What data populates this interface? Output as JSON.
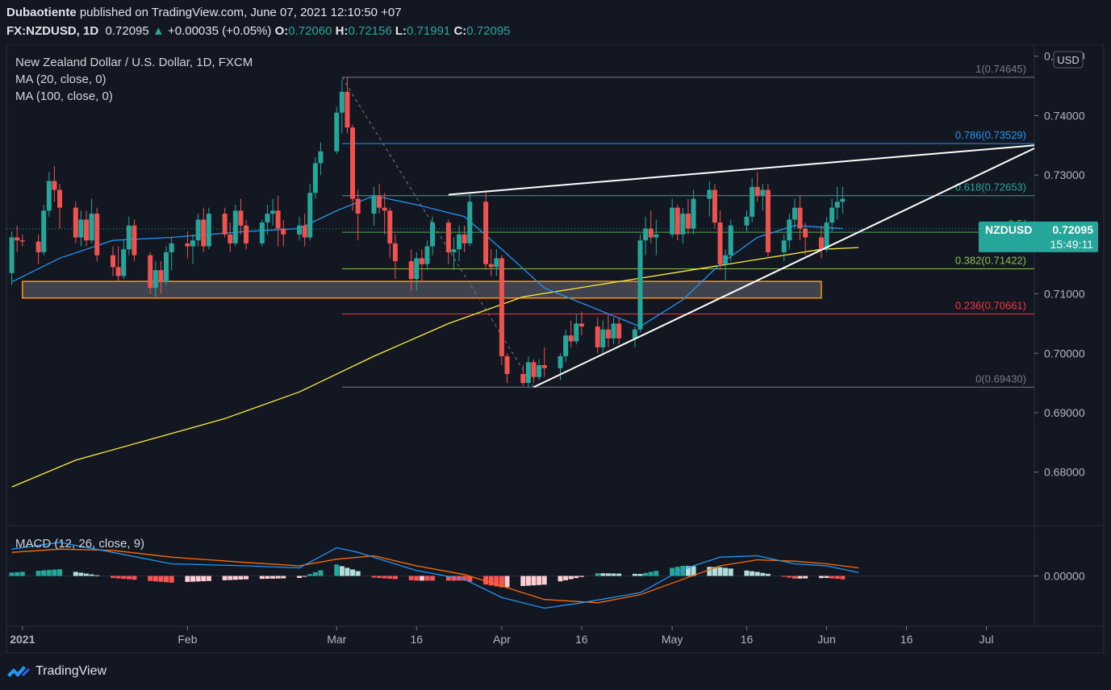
{
  "header": {
    "author": "Dubaotiente",
    "published": " published on TradingView.com, June 07, 2021 12:10:50 +07",
    "symbol": "FX:NZDUSD, 1D",
    "last": "0.72095",
    "change_arrow": "▲",
    "change": "+0.00035 (+0.05%)",
    "o_label": "O:",
    "o": "0.72060",
    "h_label": "H:",
    "h": "0.72156",
    "l_label": "L:",
    "l": "0.71991",
    "c_label": "C:",
    "c": "0.72095"
  },
  "legend": {
    "title": "New Zealand Dollar / U.S. Dollar, 1D, FXCM",
    "ma20": "MA (20, close, 0)",
    "ma100": "MA (100, close, 0)",
    "macd": "MACD (12, 26, close, 9)"
  },
  "currency_badge": "USD",
  "price_tag": {
    "symbol": "NZDUSD",
    "price": "0.72095",
    "countdown": "15:49:11"
  },
  "footer": {
    "brand": "TradingView",
    "logo_icon": "tradingview-logo-icon"
  },
  "colors": {
    "background": "#131722",
    "up": "#26a69a",
    "down": "#ef5350",
    "ma20": "#2196f3",
    "ma100": "#ffeb3b",
    "fib_1": "#787b86",
    "fib_786": "#2196f3",
    "fib_618": "#26a69a",
    "fib_5": "#4caf50",
    "fib_382": "#8bc34a",
    "fib_236": "#f23645",
    "support_zone": "#ff9800",
    "trendline": "#ffffff",
    "macd_line": "#2196f3",
    "signal_line": "#ff6d00"
  },
  "chart_data": {
    "type": "candlestick",
    "ylim": [
      0.671,
      0.752
    ],
    "xlim": [
      "2020-12-29",
      "2021-07-10"
    ],
    "y_ticks": [
      "0.75000",
      "0.74000",
      "0.73000",
      "0.72000",
      "0.71000",
      "0.70000",
      "0.69000",
      "0.68000"
    ],
    "x_ticks": [
      {
        "label": "2021",
        "date": "2021-01-01",
        "bold": true
      },
      {
        "label": "Feb",
        "date": "2021-02-01"
      },
      {
        "label": "Mar",
        "date": "2021-03-01"
      },
      {
        "label": "16",
        "date": "2021-03-16"
      },
      {
        "label": "Apr",
        "date": "2021-04-01"
      },
      {
        "label": "16",
        "date": "2021-04-16"
      },
      {
        "label": "May",
        "date": "2021-05-03"
      },
      {
        "label": "16",
        "date": "2021-05-17"
      },
      {
        "label": "Jun",
        "date": "2021-06-01"
      },
      {
        "label": "16",
        "date": "2021-06-16"
      },
      {
        "label": "Jul",
        "date": "2021-07-01"
      }
    ],
    "candles": [
      [
        "2020-12-30",
        0.7135,
        0.7205,
        0.7115,
        0.7195
      ],
      [
        "2020-12-31",
        0.7195,
        0.7215,
        0.717,
        0.719
      ],
      [
        "2021-01-01",
        0.719,
        0.72,
        0.718,
        0.7188
      ],
      [
        "2021-01-04",
        0.7188,
        0.72,
        0.715,
        0.717
      ],
      [
        "2021-01-05",
        0.717,
        0.725,
        0.7165,
        0.724
      ],
      [
        "2021-01-06",
        0.724,
        0.7305,
        0.723,
        0.729
      ],
      [
        "2021-01-07",
        0.729,
        0.7315,
        0.7255,
        0.7275
      ],
      [
        "2021-01-08",
        0.7275,
        0.7285,
        0.721,
        0.7245
      ],
      [
        "2021-01-11",
        0.7245,
        0.7255,
        0.7185,
        0.7195
      ],
      [
        "2021-01-12",
        0.7195,
        0.724,
        0.718,
        0.7225
      ],
      [
        "2021-01-13",
        0.7225,
        0.724,
        0.718,
        0.719
      ],
      [
        "2021-01-14",
        0.719,
        0.726,
        0.7185,
        0.7235
      ],
      [
        "2021-01-15",
        0.7235,
        0.7245,
        0.7155,
        0.7165
      ],
      [
        "2021-01-18",
        0.7165,
        0.718,
        0.713,
        0.7145
      ],
      [
        "2021-01-19",
        0.7145,
        0.718,
        0.712,
        0.713
      ],
      [
        "2021-01-20",
        0.713,
        0.719,
        0.7125,
        0.7175
      ],
      [
        "2021-01-21",
        0.7175,
        0.723,
        0.7165,
        0.7215
      ],
      [
        "2021-01-22",
        0.7215,
        0.7225,
        0.7155,
        0.7165
      ],
      [
        "2021-01-25",
        0.7165,
        0.717,
        0.71,
        0.711
      ],
      [
        "2021-01-26",
        0.711,
        0.7155,
        0.7095,
        0.714
      ],
      [
        "2021-01-27",
        0.714,
        0.7155,
        0.71,
        0.712
      ],
      [
        "2021-01-28",
        0.712,
        0.718,
        0.7115,
        0.717
      ],
      [
        "2021-01-29",
        0.717,
        0.7195,
        0.714,
        0.7185
      ],
      [
        "2021-02-01",
        0.7185,
        0.7205,
        0.716,
        0.718
      ],
      [
        "2021-02-02",
        0.718,
        0.72,
        0.715,
        0.719
      ],
      [
        "2021-02-03",
        0.719,
        0.7235,
        0.718,
        0.7225
      ],
      [
        "2021-02-04",
        0.7225,
        0.7245,
        0.717,
        0.718
      ],
      [
        "2021-02-05",
        0.718,
        0.7245,
        0.7175,
        0.7235
      ],
      [
        "2021-02-08",
        0.7235,
        0.7245,
        0.7195,
        0.72
      ],
      [
        "2021-02-09",
        0.72,
        0.722,
        0.717,
        0.7185
      ],
      [
        "2021-02-10",
        0.7185,
        0.725,
        0.718,
        0.724
      ],
      [
        "2021-02-11",
        0.724,
        0.726,
        0.72,
        0.7215
      ],
      [
        "2021-02-12",
        0.7215,
        0.7225,
        0.7175,
        0.7185
      ],
      [
        "2021-02-15",
        0.7185,
        0.7225,
        0.718,
        0.722
      ],
      [
        "2021-02-16",
        0.722,
        0.725,
        0.72,
        0.7235
      ],
      [
        "2021-02-17",
        0.7235,
        0.726,
        0.7215,
        0.724
      ],
      [
        "2021-02-18",
        0.724,
        0.7265,
        0.718,
        0.721
      ],
      [
        "2021-02-19",
        0.721,
        0.7225,
        0.718,
        0.72
      ],
      [
        "2021-02-22",
        0.72,
        0.723,
        0.719,
        0.7215
      ],
      [
        "2021-02-23",
        0.7215,
        0.7235,
        0.718,
        0.7195
      ],
      [
        "2021-02-24",
        0.7195,
        0.7285,
        0.719,
        0.727
      ],
      [
        "2021-02-25",
        0.727,
        0.733,
        0.726,
        0.732
      ],
      [
        "2021-02-26",
        0.732,
        0.7355,
        0.73,
        0.734
      ],
      [
        "2021-03-01",
        0.734,
        0.7415,
        0.7335,
        0.7405
      ],
      [
        "2021-03-02",
        0.7405,
        0.746,
        0.737,
        0.744
      ],
      [
        "2021-03-03",
        0.744,
        0.7465,
        0.737,
        0.738
      ],
      [
        "2021-03-04",
        0.738,
        0.7385,
        0.724,
        0.726
      ],
      [
        "2021-03-05",
        0.726,
        0.7275,
        0.719,
        0.7235
      ],
      [
        "2021-03-08",
        0.7235,
        0.728,
        0.7215,
        0.7265
      ],
      [
        "2021-03-09",
        0.7265,
        0.7285,
        0.7235,
        0.7245
      ],
      [
        "2021-03-10",
        0.7245,
        0.727,
        0.72,
        0.724
      ],
      [
        "2021-03-11",
        0.724,
        0.7245,
        0.716,
        0.7185
      ],
      [
        "2021-03-12",
        0.7185,
        0.72,
        0.7125,
        0.7155
      ],
      [
        "2021-03-15",
        0.7155,
        0.7175,
        0.7105,
        0.7125
      ],
      [
        "2021-03-16",
        0.7125,
        0.717,
        0.7105,
        0.716
      ],
      [
        "2021-03-17",
        0.716,
        0.7175,
        0.712,
        0.715
      ],
      [
        "2021-03-18",
        0.715,
        0.719,
        0.714,
        0.718
      ],
      [
        "2021-03-19",
        0.718,
        0.723,
        0.7165,
        0.722
      ],
      [
        "2021-03-22",
        0.722,
        0.7225,
        0.715,
        0.717
      ],
      [
        "2021-03-23",
        0.717,
        0.7195,
        0.714,
        0.7175
      ],
      [
        "2021-03-24",
        0.7175,
        0.7215,
        0.7155,
        0.72
      ],
      [
        "2021-03-25",
        0.72,
        0.7215,
        0.717,
        0.7185
      ],
      [
        "2021-03-26",
        0.7185,
        0.727,
        0.718,
        0.7255
      ],
      [
        "2021-03-29",
        0.7255,
        0.727,
        0.714,
        0.715
      ],
      [
        "2021-03-30",
        0.715,
        0.7175,
        0.713,
        0.7145
      ],
      [
        "2021-03-31",
        0.7145,
        0.7175,
        0.713,
        0.716
      ],
      [
        "2021-04-01",
        0.716,
        0.7165,
        0.698,
        0.6995
      ],
      [
        "2021-04-02",
        0.6995,
        0.7,
        0.695,
        0.6965
      ],
      [
        "2021-04-05",
        0.6965,
        0.698,
        0.6945,
        0.695
      ],
      [
        "2021-04-06",
        0.695,
        0.6995,
        0.6943,
        0.6985
      ],
      [
        "2021-04-07",
        0.6985,
        0.699,
        0.695,
        0.696
      ],
      [
        "2021-04-08",
        0.696,
        0.699,
        0.6955,
        0.698
      ],
      [
        "2021-04-09",
        0.698,
        0.701,
        0.696,
        0.6975
      ],
      [
        "2021-04-12",
        0.6975,
        0.7,
        0.6955,
        0.6995
      ],
      [
        "2021-04-13",
        0.6995,
        0.704,
        0.6985,
        0.703
      ],
      [
        "2021-04-14",
        0.703,
        0.7055,
        0.701,
        0.702
      ],
      [
        "2021-04-15",
        0.702,
        0.7065,
        0.7015,
        0.705
      ],
      [
        "2021-04-16",
        0.705,
        0.707,
        0.703,
        0.7045
      ],
      [
        "2021-04-19",
        0.7045,
        0.706,
        0.7,
        0.701
      ],
      [
        "2021-04-20",
        0.701,
        0.7055,
        0.7,
        0.704
      ],
      [
        "2021-04-21",
        0.704,
        0.7065,
        0.701,
        0.7025
      ],
      [
        "2021-04-22",
        0.7025,
        0.706,
        0.7015,
        0.705
      ],
      [
        "2021-04-23",
        0.705,
        0.706,
        0.7015,
        0.7025
      ],
      [
        "2021-04-26",
        0.7025,
        0.7045,
        0.701,
        0.704
      ],
      [
        "2021-04-27",
        0.704,
        0.72,
        0.7035,
        0.719
      ],
      [
        "2021-04-28",
        0.719,
        0.723,
        0.7165,
        0.721
      ],
      [
        "2021-04-29",
        0.721,
        0.724,
        0.7185,
        0.7195
      ],
      [
        "2021-04-30",
        0.7195,
        0.7225,
        0.7165,
        0.72
      ],
      [
        "2021-05-03",
        0.72,
        0.726,
        0.7195,
        0.7245
      ],
      [
        "2021-05-04",
        0.7245,
        0.725,
        0.719,
        0.72
      ],
      [
        "2021-05-05",
        0.72,
        0.7245,
        0.7185,
        0.7235
      ],
      [
        "2021-05-06",
        0.7235,
        0.726,
        0.72,
        0.721
      ],
      [
        "2021-05-07",
        0.721,
        0.7275,
        0.72,
        0.726
      ],
      [
        "2021-05-10",
        0.726,
        0.729,
        0.723,
        0.7275
      ],
      [
        "2021-05-11",
        0.7275,
        0.7285,
        0.721,
        0.722
      ],
      [
        "2021-05-12",
        0.722,
        0.724,
        0.714,
        0.715
      ],
      [
        "2021-05-13",
        0.715,
        0.7175,
        0.712,
        0.7165
      ],
      [
        "2021-05-14",
        0.7165,
        0.7225,
        0.7155,
        0.7215
      ],
      [
        "2021-05-17",
        0.7215,
        0.724,
        0.7205,
        0.723
      ],
      [
        "2021-05-18",
        0.723,
        0.7295,
        0.722,
        0.728
      ],
      [
        "2021-05-19",
        0.728,
        0.7305,
        0.7255,
        0.7265
      ],
      [
        "2021-05-20",
        0.7265,
        0.7285,
        0.724,
        0.7275
      ],
      [
        "2021-05-21",
        0.7275,
        0.7285,
        0.716,
        0.717
      ],
      [
        "2021-05-24",
        0.717,
        0.72,
        0.7155,
        0.719
      ],
      [
        "2021-05-25",
        0.719,
        0.7235,
        0.7175,
        0.7225
      ],
      [
        "2021-05-26",
        0.7225,
        0.726,
        0.721,
        0.7245
      ],
      [
        "2021-05-27",
        0.7245,
        0.7265,
        0.719,
        0.721
      ],
      [
        "2021-05-28",
        0.721,
        0.722,
        0.7165,
        0.7195
      ],
      [
        "2021-05-31",
        0.7195,
        0.7215,
        0.716,
        0.7175
      ],
      [
        "2021-06-01",
        0.7175,
        0.723,
        0.717,
        0.722
      ],
      [
        "2021-06-02",
        0.722,
        0.726,
        0.7205,
        0.7245
      ],
      [
        "2021-06-03",
        0.7245,
        0.728,
        0.7225,
        0.7255
      ],
      [
        "2021-06-04",
        0.7255,
        0.728,
        0.7235,
        0.726
      ]
    ],
    "ma20_points": [
      [
        "2020-12-30",
        0.712
      ],
      [
        "2021-01-08",
        0.716
      ],
      [
        "2021-01-18",
        0.719
      ],
      [
        "2021-01-29",
        0.7195
      ],
      [
        "2021-02-12",
        0.7205
      ],
      [
        "2021-02-22",
        0.721
      ],
      [
        "2021-03-01",
        0.724
      ],
      [
        "2021-03-08",
        0.7265
      ],
      [
        "2021-03-16",
        0.725
      ],
      [
        "2021-03-25",
        0.723
      ],
      [
        "2021-04-01",
        0.7175
      ],
      [
        "2021-04-09",
        0.711
      ],
      [
        "2021-04-20",
        0.707
      ],
      [
        "2021-04-27",
        0.7045
      ],
      [
        "2021-05-05",
        0.709
      ],
      [
        "2021-05-12",
        0.715
      ],
      [
        "2021-05-19",
        0.7195
      ],
      [
        "2021-05-26",
        0.7215
      ],
      [
        "2021-06-04",
        0.721
      ]
    ],
    "ma100_points": [
      [
        "2020-12-30",
        0.6775
      ],
      [
        "2021-01-11",
        0.682
      ],
      [
        "2021-01-25",
        0.6855
      ],
      [
        "2021-02-08",
        0.689
      ],
      [
        "2021-02-22",
        0.6935
      ],
      [
        "2021-03-08",
        0.6995
      ],
      [
        "2021-03-22",
        0.705
      ],
      [
        "2021-04-05",
        0.7095
      ],
      [
        "2021-04-19",
        0.7115
      ],
      [
        "2021-05-03",
        0.7135
      ],
      [
        "2021-05-17",
        0.7155
      ],
      [
        "2021-05-31",
        0.7175
      ],
      [
        "2021-06-07",
        0.7178
      ]
    ],
    "fibonacci": {
      "from_date": "2021-03-02",
      "to_date": "2021-04-07",
      "levels": [
        {
          "ratio": "1",
          "value": 0.74645,
          "label": "1(0.74645)",
          "color_key": "fib_1"
        },
        {
          "ratio": "0.786",
          "value": 0.73529,
          "label": "0.786(0.73529)",
          "color_key": "fib_786"
        },
        {
          "ratio": "0.618",
          "value": 0.72653,
          "label": "0.618(0.72653)",
          "color_key": "fib_618"
        },
        {
          "ratio": "0.5",
          "value": 0.72037,
          "label": "0.5(",
          "color_key": "fib_5"
        },
        {
          "ratio": "0.382",
          "value": 0.71422,
          "label": "0.382(0.71422)",
          "color_key": "fib_382"
        },
        {
          "ratio": "0.236",
          "value": 0.70661,
          "label": "0.236(0.70661)",
          "color_key": "fib_236"
        },
        {
          "ratio": "0",
          "value": 0.6943,
          "label": "0(0.69430)",
          "color_key": "fib_1"
        }
      ]
    },
    "support_zone": {
      "from_date": "2021-01-01",
      "to_date": "2021-05-31",
      "top": 0.7121,
      "bottom": 0.7093
    },
    "trendlines": [
      {
        "from": [
          "2021-03-22",
          0.7267
        ],
        "to": [
          "2021-07-10",
          0.735
        ]
      },
      {
        "from": [
          "2021-04-07",
          0.6943
        ],
        "to": [
          "2021-07-10",
          0.7345
        ]
      }
    ],
    "current_price": 0.72095,
    "macd": {
      "ylim": [
        -0.0075,
        0.0075
      ],
      "y_ticks": [
        "0.00000"
      ],
      "macd_line": [
        [
          "2020-12-30",
          0.004
        ],
        [
          "2021-01-08",
          0.005
        ],
        [
          "2021-01-18",
          0.0035
        ],
        [
          "2021-01-29",
          0.0018
        ],
        [
          "2021-02-12",
          0.0015
        ],
        [
          "2021-02-22",
          0.0012
        ],
        [
          "2021-03-01",
          0.0042
        ],
        [
          "2021-03-05",
          0.0035
        ],
        [
          "2021-03-16",
          0.0008
        ],
        [
          "2021-03-25",
          -0.0005
        ],
        [
          "2021-04-01",
          -0.0032
        ],
        [
          "2021-04-09",
          -0.0048
        ],
        [
          "2021-04-16",
          -0.004
        ],
        [
          "2021-04-27",
          -0.0025
        ],
        [
          "2021-05-05",
          0.001
        ],
        [
          "2021-05-12",
          0.0028
        ],
        [
          "2021-05-19",
          0.003
        ],
        [
          "2021-05-26",
          0.0018
        ],
        [
          "2021-06-01",
          0.0015
        ],
        [
          "2021-06-07",
          0.0005
        ]
      ],
      "signal_line": [
        [
          "2020-12-30",
          0.0035
        ],
        [
          "2021-01-08",
          0.004
        ],
        [
          "2021-01-18",
          0.0038
        ],
        [
          "2021-01-29",
          0.0028
        ],
        [
          "2021-02-12",
          0.002
        ],
        [
          "2021-02-22",
          0.0015
        ],
        [
          "2021-03-01",
          0.0025
        ],
        [
          "2021-03-08",
          0.003
        ],
        [
          "2021-03-16",
          0.0015
        ],
        [
          "2021-03-25",
          0.0002
        ],
        [
          "2021-04-01",
          -0.0015
        ],
        [
          "2021-04-09",
          -0.0035
        ],
        [
          "2021-04-19",
          -0.004
        ],
        [
          "2021-04-27",
          -0.0028
        ],
        [
          "2021-05-05",
          -0.0005
        ],
        [
          "2021-05-12",
          0.0015
        ],
        [
          "2021-05-19",
          0.0024
        ],
        [
          "2021-05-26",
          0.0022
        ],
        [
          "2021-06-01",
          0.0018
        ],
        [
          "2021-06-07",
          0.0012
        ]
      ]
    }
  }
}
